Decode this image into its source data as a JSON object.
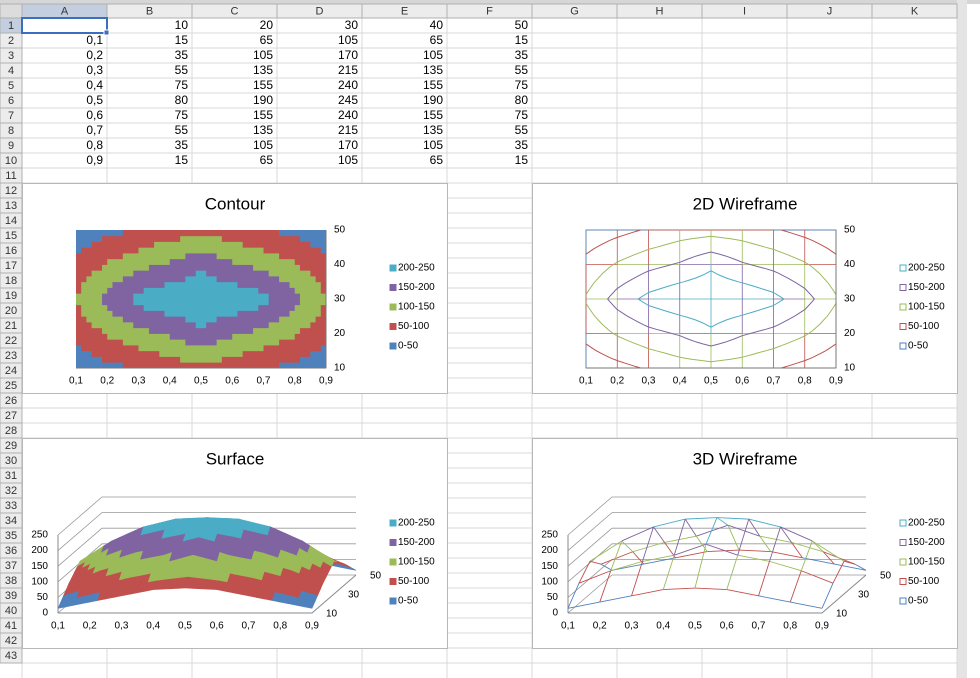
{
  "header": {
    "columns": [
      "A",
      "B",
      "C",
      "D",
      "E",
      "F",
      "G",
      "H",
      "I",
      "J",
      "K"
    ],
    "rows": [
      1,
      2,
      3,
      4,
      5,
      6,
      7,
      8,
      9,
      10,
      11,
      12,
      13,
      14,
      15,
      16,
      17,
      18,
      19,
      20,
      21,
      22,
      23,
      24,
      25,
      26,
      27,
      28,
      29,
      30,
      31,
      32,
      33,
      34,
      35,
      36,
      37,
      38,
      39,
      40,
      41,
      42,
      43
    ]
  },
  "table": {
    "rows": [
      [
        null,
        10,
        20,
        30,
        40,
        50
      ],
      [
        "0,1",
        15,
        65,
        105,
        65,
        15
      ],
      [
        "0,2",
        35,
        105,
        170,
        105,
        35
      ],
      [
        "0,3",
        55,
        135,
        215,
        135,
        55
      ],
      [
        "0,4",
        75,
        155,
        240,
        155,
        75
      ],
      [
        "0,5",
        80,
        190,
        245,
        190,
        80
      ],
      [
        "0,6",
        75,
        155,
        240,
        155,
        75
      ],
      [
        "0,7",
        55,
        135,
        215,
        135,
        55
      ],
      [
        "0,8",
        35,
        105,
        170,
        105,
        35
      ],
      [
        "0,9",
        15,
        65,
        105,
        65,
        15
      ]
    ]
  },
  "charts": [
    {
      "type": "contour",
      "title": "Contour",
      "zlim": [
        0,
        250
      ],
      "zticks": [
        0,
        50,
        100,
        150,
        200,
        250
      ],
      "legend": [
        {
          "label": "200-250",
          "color": "#4bacc6"
        },
        {
          "label": "150-200",
          "color": "#8064a2"
        },
        {
          "label": "100-150",
          "color": "#9bbb59"
        },
        {
          "label": "50-100",
          "color": "#c0504d"
        },
        {
          "label": "0-50",
          "color": "#4f81bd"
        }
      ]
    },
    {
      "type": "wireframe2d",
      "title": "2D Wireframe",
      "zlim": [
        0,
        250
      ],
      "zticks": [
        0,
        50,
        100,
        150,
        200,
        250
      ],
      "legend": [
        {
          "label": "200-250",
          "color": "#4bacc6"
        },
        {
          "label": "150-200",
          "color": "#8064a2"
        },
        {
          "label": "100-150",
          "color": "#9bbb59"
        },
        {
          "label": "50-100",
          "color": "#c0504d"
        },
        {
          "label": "0-50",
          "color": "#4f81bd"
        }
      ]
    },
    {
      "type": "surface",
      "title": "Surface",
      "zlim": [
        0,
        250
      ],
      "zticks": [
        0,
        50,
        100,
        150,
        200,
        250
      ],
      "legend": [
        {
          "label": "200-250",
          "color": "#4bacc6"
        },
        {
          "label": "150-200",
          "color": "#8064a2"
        },
        {
          "label": "100-150",
          "color": "#9bbb59"
        },
        {
          "label": "50-100",
          "color": "#c0504d"
        },
        {
          "label": "0-50",
          "color": "#4f81bd"
        }
      ]
    },
    {
      "type": "wireframe3d",
      "title": "3D Wireframe",
      "zlim": [
        0,
        250
      ],
      "zticks": [
        0,
        50,
        100,
        150,
        200,
        250
      ],
      "legend": [
        {
          "label": "200-250",
          "color": "#4bacc6"
        },
        {
          "label": "150-200",
          "color": "#8064a2"
        },
        {
          "label": "100-150",
          "color": "#9bbb59"
        },
        {
          "label": "50-100",
          "color": "#c0504d"
        },
        {
          "label": "0-50",
          "color": "#4f81bd"
        }
      ]
    }
  ]
}
